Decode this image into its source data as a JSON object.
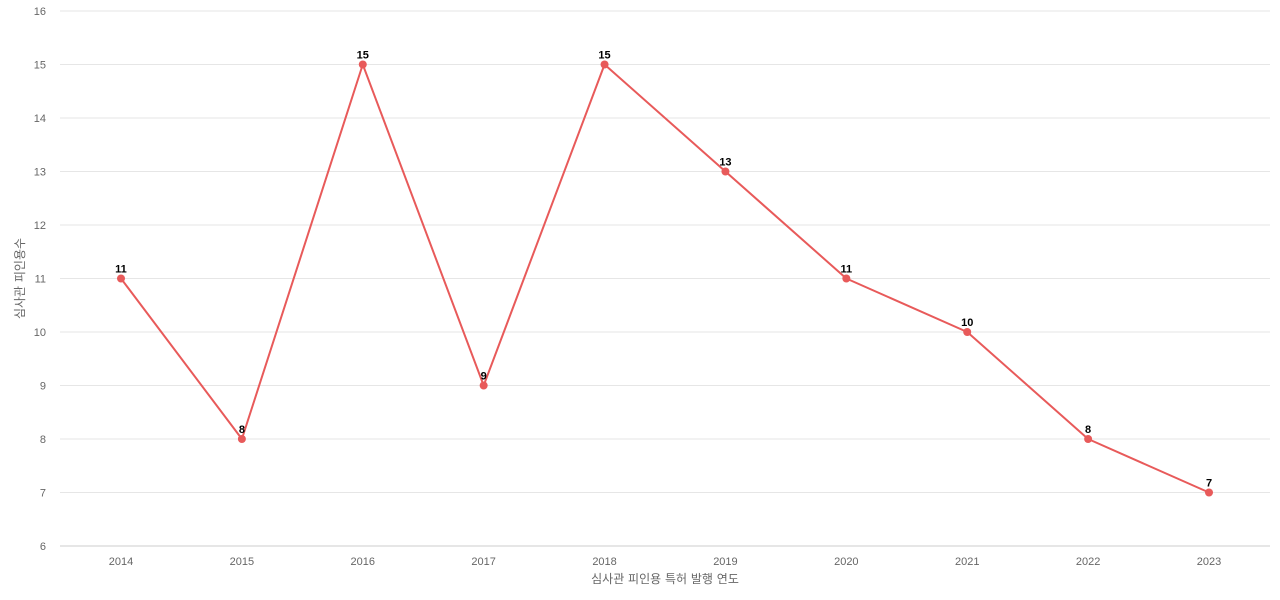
{
  "chart_data": {
    "type": "line",
    "title": "",
    "xlabel": "심사관 피인용 특허 발행 연도",
    "ylabel": "심사관 피인용수",
    "categories": [
      "2014",
      "2015",
      "2016",
      "2017",
      "2018",
      "2019",
      "2020",
      "2021",
      "2022",
      "2023"
    ],
    "series": [
      {
        "values": [
          11,
          8,
          15,
          9,
          15,
          13,
          11,
          10,
          8,
          7
        ],
        "color": "#e85a5a"
      }
    ],
    "ylim": [
      6,
      16
    ],
    "yticks": [
      6,
      7,
      8,
      9,
      10,
      11,
      12,
      13,
      14,
      15,
      16
    ],
    "grid": true,
    "data_labels": true,
    "legend": "none"
  }
}
